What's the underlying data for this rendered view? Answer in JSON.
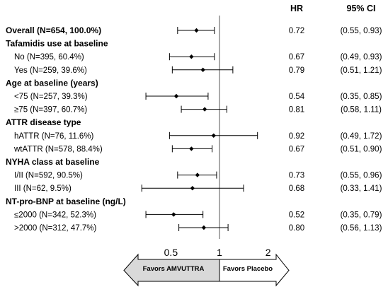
{
  "chart_data": {
    "type": "forest",
    "headers": {
      "hr": "HR",
      "ci": "95% CI"
    },
    "x_scale": "log",
    "x_ticks": [
      {
        "value": 0.5,
        "label": "0.5"
      },
      {
        "value": 1,
        "label": "1"
      },
      {
        "value": 2,
        "label": "2"
      }
    ],
    "reference_line": 1,
    "arrows": {
      "left": "Favors AMVUTTRA",
      "right": "Favors Placebo"
    },
    "rows": [
      {
        "kind": "estimate",
        "bold": true,
        "label": "Overall (N=654, 100.0%)",
        "hr": 0.72,
        "lo": 0.55,
        "hi": 0.93,
        "hr_text": "0.72",
        "ci_text": "(0.55, 0.93)"
      },
      {
        "kind": "group",
        "label": "Tafamidis use at baseline"
      },
      {
        "kind": "estimate",
        "label": "No (N=395, 60.4%)",
        "hr": 0.67,
        "lo": 0.49,
        "hi": 0.93,
        "hr_text": "0.67",
        "ci_text": "(0.49, 0.93)"
      },
      {
        "kind": "estimate",
        "label": "Yes (N=259, 39.6%)",
        "hr": 0.79,
        "lo": 0.51,
        "hi": 1.21,
        "hr_text": "0.79",
        "ci_text": "(0.51, 1.21)"
      },
      {
        "kind": "group",
        "label": "Age at baseline (years)"
      },
      {
        "kind": "estimate",
        "label": "<75 (N=257, 39.3%)",
        "hr": 0.54,
        "lo": 0.35,
        "hi": 0.85,
        "hr_text": "0.54",
        "ci_text": "(0.35, 0.85)"
      },
      {
        "kind": "estimate",
        "label": "≥75 (N=397, 60.7%)",
        "hr": 0.81,
        "lo": 0.58,
        "hi": 1.11,
        "hr_text": "0.81",
        "ci_text": "(0.58, 1.11)"
      },
      {
        "kind": "group",
        "label": "ATTR disease type"
      },
      {
        "kind": "estimate",
        "label": "hATTR (N=76, 11.6%)",
        "hr": 0.92,
        "lo": 0.49,
        "hi": 1.72,
        "hr_text": "0.92",
        "ci_text": "(0.49, 1.72)"
      },
      {
        "kind": "estimate",
        "label": "wtATTR (N=578, 88.4%)",
        "hr": 0.67,
        "lo": 0.51,
        "hi": 0.9,
        "hr_text": "0.67",
        "ci_text": "(0.51, 0.90)"
      },
      {
        "kind": "group",
        "label": "NYHA class at baseline"
      },
      {
        "kind": "estimate",
        "label": "I/II (N=592, 90.5%)",
        "hr": 0.73,
        "lo": 0.55,
        "hi": 0.96,
        "hr_text": "0.73",
        "ci_text": "(0.55, 0.96)"
      },
      {
        "kind": "estimate",
        "label": "III (N=62, 9.5%)",
        "hr": 0.68,
        "lo": 0.33,
        "hi": 1.41,
        "hr_text": "0.68",
        "ci_text": "(0.33, 1.41)"
      },
      {
        "kind": "group",
        "label": "NT-pro-BNP at baseline (ng/L)"
      },
      {
        "kind": "estimate",
        "label": "≤2000 (N=342, 52.3%)",
        "hr": 0.52,
        "lo": 0.35,
        "hi": 0.79,
        "hr_text": "0.52",
        "ci_text": "(0.35, 0.79)"
      },
      {
        "kind": "estimate",
        "label": ">2000 (N=312, 47.7%)",
        "hr": 0.8,
        "lo": 0.56,
        "hi": 1.13,
        "hr_text": "0.80",
        "ci_text": "(0.56, 1.13)"
      }
    ],
    "colors": {
      "marks": "#000000",
      "reference_line": "#555555",
      "left_arrow_fill": "#d9d9d9",
      "right_arrow_fill": "#ffffff"
    }
  }
}
